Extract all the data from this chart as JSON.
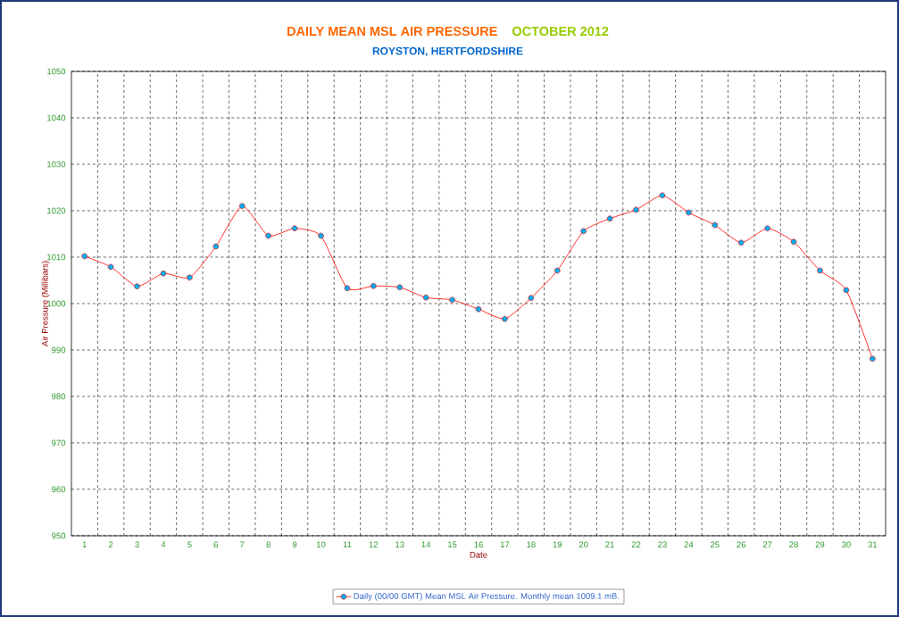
{
  "chart_data": {
    "type": "line",
    "title": "DAILY MEAN MSL AIR PRESSURE",
    "subtitle": "ROYSTON, HERTFORDSHIRE",
    "annotations": [
      "OCTOBER 2012"
    ],
    "xlabel": "Date",
    "ylabel": "Air Pressure (Millibars)",
    "categories": [
      "1",
      "2",
      "3",
      "4",
      "5",
      "6",
      "7",
      "8",
      "9",
      "10",
      "11",
      "12",
      "13",
      "14",
      "15",
      "16",
      "17",
      "18",
      "19",
      "20",
      "21",
      "22",
      "23",
      "24",
      "25",
      "26",
      "27",
      "28",
      "29",
      "30",
      "31"
    ],
    "series": [
      {
        "name": "Daily (00/00 GMT) Mean MSL Air Pressure. Monthly mean 1009.1 mB.",
        "color": "#ff0000",
        "values": [
          1010.2,
          1007.9,
          1003.7,
          1006.5,
          1005.6,
          1012.3,
          1021.0,
          1014.6,
          1016.2,
          1014.6,
          1003.3,
          1003.8,
          1003.5,
          1001.3,
          1000.8,
          998.8,
          996.7,
          1001.2,
          1007.1,
          1015.6,
          1018.3,
          1020.2,
          1023.3,
          1019.6,
          1016.9,
          1013.1,
          1016.2,
          1013.3,
          1007.1,
          1002.9,
          988.1
        ]
      }
    ],
    "ylim": [
      950,
      1050
    ],
    "yticks": [
      950,
      960,
      970,
      980,
      990,
      1000,
      1010,
      1020,
      1030,
      1040,
      1050
    ],
    "grid": true,
    "legend": "bottom",
    "marker": "circle"
  }
}
